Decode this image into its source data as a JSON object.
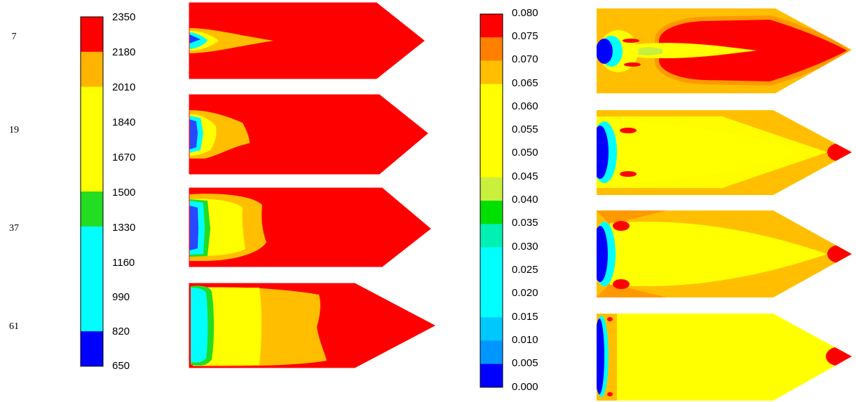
{
  "row_labels": [
    "7",
    "19",
    "37",
    "61"
  ],
  "legend_left": {
    "ticks": [
      "2350",
      "2180",
      "2010",
      "1840",
      "1670",
      "1500",
      "1330",
      "1160",
      "990",
      "820",
      "650"
    ],
    "band_colors": [
      "#ff0000",
      "#ffb400",
      "#ffff00",
      "#ffff00",
      "#ffff00",
      "#22dd22",
      "#00ffff",
      "#00ffff",
      "#00ffff",
      "#0000ff"
    ]
  },
  "legend_right": {
    "ticks": [
      "0.080",
      "0.075",
      "0.070",
      "0.065",
      "0.060",
      "0.055",
      "0.050",
      "0.045",
      "0.040",
      "0.035",
      "0.030",
      "0.025",
      "0.020",
      "0.015",
      "0.010",
      "0.005",
      "0.000"
    ],
    "band_colors": [
      "#ff0000",
      "#ff8000",
      "#ffbf00",
      "#ffff00",
      "#ffff00",
      "#ffff00",
      "#ffff00",
      "#c8f03c",
      "#00e000",
      "#00f0b4",
      "#00ffff",
      "#00ffff",
      "#00ffff",
      "#00c8ff",
      "#0096ff",
      "#0000ff"
    ]
  },
  "colors": {
    "red": "#ff0000",
    "orange": "#ffbf00",
    "dark_orange": "#ff9900",
    "yellow": "#ffff00",
    "green": "#22dd22",
    "cyan": "#00ffff",
    "blue": "#0000ff"
  }
}
